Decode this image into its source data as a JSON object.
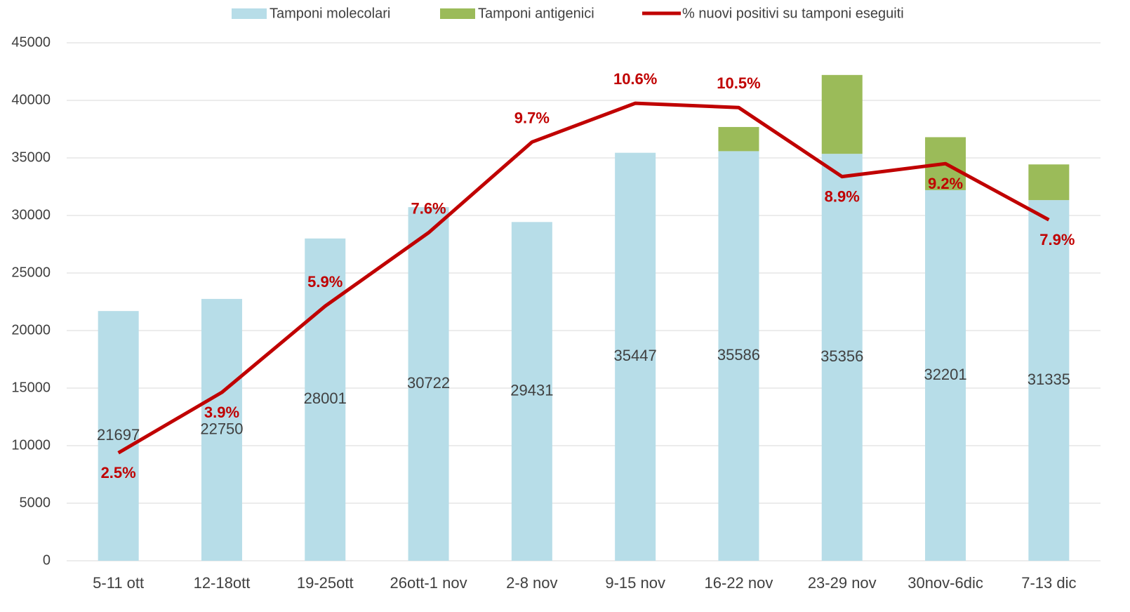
{
  "chart_data": {
    "type": "bar-line",
    "categories": [
      "5-11 ott",
      "12-18ott",
      "19-25ott",
      "26ott-1 nov",
      "2-8 nov",
      "9-15 nov",
      "16-22 nov",
      "23-29 nov",
      "30nov-6dic",
      "7-13 dic"
    ],
    "series": [
      {
        "name": "Tamponi molecolari",
        "type": "bar",
        "color": "#b7dde8",
        "values": [
          21697,
          22750,
          28001,
          30722,
          29431,
          35447,
          35586,
          35356,
          32201,
          31335
        ]
      },
      {
        "name": "Tamponi antigenici",
        "type": "bar",
        "color": "#9bbb59",
        "values": [
          null,
          null,
          null,
          null,
          null,
          null,
          2100,
          6850,
          4600,
          3100
        ]
      },
      {
        "name": "% nuovi positivi su tamponi eseguiti",
        "type": "line",
        "axis": "y2",
        "color": "#c00000",
        "values": [
          2.5,
          3.9,
          5.9,
          7.6,
          9.7,
          10.6,
          10.5,
          8.9,
          9.2,
          7.9
        ],
        "value_labels": [
          "2.5%",
          "3.9%",
          "5.9%",
          "7.6%",
          "9.7%",
          "10.6%",
          "10.5%",
          "8.9%",
          "9.2%",
          "7.9%"
        ]
      }
    ],
    "ylim": [
      0,
      45000
    ],
    "yticks": [
      0,
      5000,
      10000,
      15000,
      20000,
      25000,
      30000,
      35000,
      40000,
      45000
    ],
    "y2lim": [
      0,
      12
    ],
    "grid": true,
    "stacked": true,
    "legend": "top"
  }
}
